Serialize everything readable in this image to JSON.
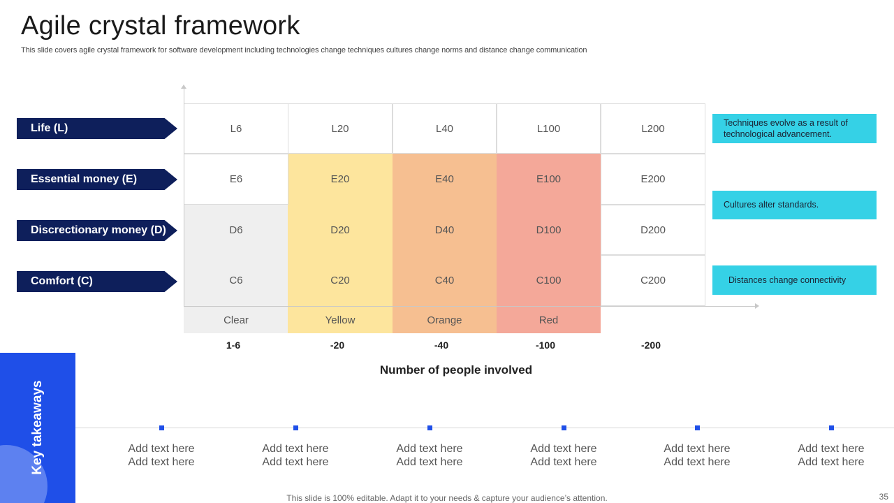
{
  "title": "Agile crystal framework",
  "subtitle": "This slide covers agile crystal framework for software development including technologies change techniques cultures change norms and distance change communication",
  "rows": [
    {
      "label": "Life (L)",
      "cells": [
        "L6",
        "L20",
        "L40",
        "L100",
        "L200"
      ]
    },
    {
      "label": "Essential money (E)",
      "cells": [
        "E6",
        "E20",
        "E40",
        "E100",
        "E200"
      ]
    },
    {
      "label": "Discrectionary money (D)",
      "cells": [
        "D6",
        "D20",
        "D40",
        "D100",
        "D200"
      ]
    },
    {
      "label": "Comfort (C)",
      "cells": [
        "C6",
        "C20",
        "C40",
        "C100",
        "C200"
      ]
    }
  ],
  "colors": [
    {
      "name": "Clear",
      "hex": "#efefef"
    },
    {
      "name": "Yellow",
      "hex": "#fde59d"
    },
    {
      "name": "Orange",
      "hex": "#f6bf91"
    },
    {
      "name": "Red",
      "hex": "#f4a899"
    }
  ],
  "x_ticks": [
    "1-6",
    "-20",
    "-40",
    "-100",
    "-200"
  ],
  "x_axis_title": "Number of people involved",
  "callouts": [
    "Techniques evolve  as a result of technological advancement.",
    "Cultures alter standards.",
    "Distances change connectivity"
  ],
  "key_takeaways": {
    "title": "Key takeaways",
    "items": [
      [
        "Add text here",
        "Add text here"
      ],
      [
        "Add text here",
        "Add text here"
      ],
      [
        "Add text here",
        "Add text here"
      ],
      [
        "Add text here",
        "Add text here"
      ],
      [
        "Add text here",
        "Add text here"
      ],
      [
        "Add text here",
        "Add text here"
      ]
    ]
  },
  "footer": "This slide is 100% editable. Adapt it to your needs & capture your audience’s attention.",
  "page_number": "35",
  "accent_colors": {
    "navy": "#0e1f5b",
    "blue": "#1f4fe8",
    "cyan": "#35d1e6"
  }
}
